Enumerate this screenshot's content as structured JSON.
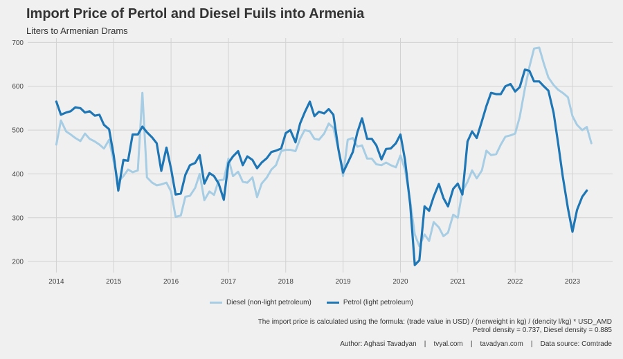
{
  "title": "Import Price of Pertol and Diesel Fuils into Armenia",
  "subtitle": "Liters to Armenian Drams",
  "caption_line1": "The import price is calculated using the formula: (trade value in USD) / (nerweight in kg) / (dencity l/kg) * USD_AMD",
  "caption_line2": "Petrol density = 0.737, Diesel density = 0.885",
  "credits": "Author: Aghasi Tavadyan    |    tvyal.com    |    tavadyan.com    |    Data source: Comtrade",
  "colors": {
    "diesel": "#a6cde3",
    "petrol": "#1f76b4",
    "grid": "#d2d2d2",
    "background": "#f0f0f0"
  },
  "chart_data": {
    "type": "line",
    "xlim": [
      2013.5,
      2023.7
    ],
    "ylim": [
      175,
      710
    ],
    "x_ticks": [
      2014,
      2015,
      2016,
      2017,
      2018,
      2019,
      2020,
      2021,
      2022,
      2023
    ],
    "y_ticks": [
      200,
      300,
      400,
      500,
      600,
      700
    ],
    "grid": true,
    "legend_position": "bottom",
    "series": [
      {
        "name": "Diesel (non-light petroleum)",
        "color": "#a6cde3",
        "points": [
          [
            2014.0,
            467
          ],
          [
            2014.08,
            522
          ],
          [
            2014.17,
            497
          ],
          [
            2014.25,
            490
          ],
          [
            2014.33,
            482
          ],
          [
            2014.42,
            475
          ],
          [
            2014.5,
            492
          ],
          [
            2014.58,
            480
          ],
          [
            2014.67,
            474
          ],
          [
            2014.75,
            467
          ],
          [
            2014.83,
            458
          ],
          [
            2014.92,
            478
          ],
          [
            2015.0,
            428
          ],
          [
            2015.08,
            382
          ],
          [
            2015.17,
            395
          ],
          [
            2015.25,
            410
          ],
          [
            2015.33,
            404
          ],
          [
            2015.42,
            408
          ],
          [
            2015.5,
            585
          ],
          [
            2015.58,
            392
          ],
          [
            2015.67,
            380
          ],
          [
            2015.75,
            374
          ],
          [
            2015.83,
            376
          ],
          [
            2015.92,
            380
          ],
          [
            2016.0,
            360
          ],
          [
            2016.08,
            302
          ],
          [
            2016.17,
            305
          ],
          [
            2016.25,
            348
          ],
          [
            2016.33,
            350
          ],
          [
            2016.42,
            368
          ],
          [
            2016.5,
            400
          ],
          [
            2016.58,
            340
          ],
          [
            2016.67,
            360
          ],
          [
            2016.75,
            352
          ],
          [
            2016.83,
            385
          ],
          [
            2016.92,
            387
          ],
          [
            2017.0,
            435
          ],
          [
            2017.08,
            395
          ],
          [
            2017.17,
            405
          ],
          [
            2017.25,
            382
          ],
          [
            2017.33,
            380
          ],
          [
            2017.42,
            392
          ],
          [
            2017.5,
            347
          ],
          [
            2017.58,
            378
          ],
          [
            2017.67,
            392
          ],
          [
            2017.75,
            410
          ],
          [
            2017.83,
            420
          ],
          [
            2017.92,
            452
          ],
          [
            2018.0,
            455
          ],
          [
            2018.08,
            455
          ],
          [
            2018.17,
            452
          ],
          [
            2018.25,
            480
          ],
          [
            2018.33,
            500
          ],
          [
            2018.42,
            497
          ],
          [
            2018.5,
            480
          ],
          [
            2018.58,
            478
          ],
          [
            2018.67,
            492
          ],
          [
            2018.75,
            515
          ],
          [
            2018.83,
            505
          ],
          [
            2018.92,
            455
          ],
          [
            2019.0,
            395
          ],
          [
            2019.08,
            478
          ],
          [
            2019.17,
            482
          ],
          [
            2019.25,
            462
          ],
          [
            2019.33,
            465
          ],
          [
            2019.42,
            435
          ],
          [
            2019.5,
            435
          ],
          [
            2019.58,
            422
          ],
          [
            2019.67,
            420
          ],
          [
            2019.75,
            426
          ],
          [
            2019.83,
            420
          ],
          [
            2019.92,
            415
          ],
          [
            2020.0,
            442
          ],
          [
            2020.08,
            410
          ],
          [
            2020.17,
            338
          ],
          [
            2020.25,
            262
          ],
          [
            2020.33,
            235
          ],
          [
            2020.42,
            262
          ],
          [
            2020.5,
            247
          ],
          [
            2020.58,
            290
          ],
          [
            2020.67,
            278
          ],
          [
            2020.75,
            258
          ],
          [
            2020.83,
            266
          ],
          [
            2020.92,
            307
          ],
          [
            2021.0,
            300
          ],
          [
            2021.08,
            360
          ],
          [
            2021.17,
            382
          ],
          [
            2021.25,
            408
          ],
          [
            2021.33,
            390
          ],
          [
            2021.42,
            408
          ],
          [
            2021.5,
            453
          ],
          [
            2021.58,
            443
          ],
          [
            2021.67,
            445
          ],
          [
            2021.75,
            467
          ],
          [
            2021.83,
            485
          ],
          [
            2021.92,
            488
          ],
          [
            2022.0,
            492
          ],
          [
            2022.08,
            530
          ],
          [
            2022.17,
            595
          ],
          [
            2022.25,
            645
          ],
          [
            2022.33,
            686
          ],
          [
            2022.42,
            688
          ],
          [
            2022.5,
            652
          ],
          [
            2022.58,
            620
          ],
          [
            2022.67,
            603
          ],
          [
            2022.75,
            592
          ],
          [
            2022.83,
            585
          ],
          [
            2022.92,
            575
          ],
          [
            2023.0,
            532
          ],
          [
            2023.08,
            512
          ],
          [
            2023.17,
            500
          ],
          [
            2023.25,
            507
          ],
          [
            2023.33,
            470
          ]
        ]
      },
      {
        "name": "Petrol (light petroleum)",
        "color": "#1f76b4",
        "points": [
          [
            2014.0,
            565
          ],
          [
            2014.08,
            535
          ],
          [
            2014.17,
            540
          ],
          [
            2014.25,
            543
          ],
          [
            2014.33,
            552
          ],
          [
            2014.42,
            550
          ],
          [
            2014.5,
            540
          ],
          [
            2014.58,
            543
          ],
          [
            2014.67,
            533
          ],
          [
            2014.75,
            535
          ],
          [
            2014.83,
            512
          ],
          [
            2014.92,
            502
          ],
          [
            2015.0,
            442
          ],
          [
            2015.08,
            362
          ],
          [
            2015.17,
            432
          ],
          [
            2015.25,
            430
          ],
          [
            2015.33,
            490
          ],
          [
            2015.42,
            490
          ],
          [
            2015.5,
            508
          ],
          [
            2015.58,
            495
          ],
          [
            2015.67,
            483
          ],
          [
            2015.75,
            470
          ],
          [
            2015.83,
            407
          ],
          [
            2015.92,
            460
          ],
          [
            2016.0,
            412
          ],
          [
            2016.08,
            353
          ],
          [
            2016.17,
            355
          ],
          [
            2016.25,
            398
          ],
          [
            2016.33,
            420
          ],
          [
            2016.42,
            425
          ],
          [
            2016.5,
            443
          ],
          [
            2016.58,
            378
          ],
          [
            2016.67,
            402
          ],
          [
            2016.75,
            395
          ],
          [
            2016.83,
            378
          ],
          [
            2016.92,
            341
          ],
          [
            2017.0,
            425
          ],
          [
            2017.08,
            440
          ],
          [
            2017.17,
            452
          ],
          [
            2017.25,
            420
          ],
          [
            2017.33,
            440
          ],
          [
            2017.42,
            432
          ],
          [
            2017.5,
            413
          ],
          [
            2017.58,
            426
          ],
          [
            2017.67,
            436
          ],
          [
            2017.75,
            450
          ],
          [
            2017.83,
            453
          ],
          [
            2017.92,
            458
          ],
          [
            2018.0,
            493
          ],
          [
            2018.08,
            500
          ],
          [
            2018.17,
            472
          ],
          [
            2018.25,
            515
          ],
          [
            2018.33,
            540
          ],
          [
            2018.42,
            565
          ],
          [
            2018.5,
            532
          ],
          [
            2018.58,
            542
          ],
          [
            2018.67,
            538
          ],
          [
            2018.75,
            548
          ],
          [
            2018.83,
            535
          ],
          [
            2018.92,
            455
          ],
          [
            2019.0,
            403
          ],
          [
            2019.08,
            425
          ],
          [
            2019.17,
            450
          ],
          [
            2019.25,
            495
          ],
          [
            2019.33,
            527
          ],
          [
            2019.42,
            480
          ],
          [
            2019.5,
            480
          ],
          [
            2019.58,
            465
          ],
          [
            2019.67,
            433
          ],
          [
            2019.75,
            457
          ],
          [
            2019.83,
            458
          ],
          [
            2019.92,
            470
          ],
          [
            2020.0,
            490
          ],
          [
            2020.08,
            432
          ],
          [
            2020.17,
            330
          ],
          [
            2020.25,
            192
          ],
          [
            2020.33,
            203
          ],
          [
            2020.42,
            326
          ],
          [
            2020.5,
            316
          ],
          [
            2020.58,
            348
          ],
          [
            2020.67,
            377
          ],
          [
            2020.75,
            345
          ],
          [
            2020.83,
            326
          ],
          [
            2020.92,
            366
          ],
          [
            2021.0,
            378
          ],
          [
            2021.08,
            353
          ],
          [
            2021.17,
            474
          ],
          [
            2021.25,
            497
          ],
          [
            2021.33,
            482
          ],
          [
            2021.42,
            520
          ],
          [
            2021.5,
            555
          ],
          [
            2021.58,
            585
          ],
          [
            2021.67,
            582
          ],
          [
            2021.75,
            582
          ],
          [
            2021.83,
            600
          ],
          [
            2021.92,
            605
          ],
          [
            2022.0,
            588
          ],
          [
            2022.08,
            598
          ],
          [
            2022.17,
            638
          ],
          [
            2022.25,
            635
          ],
          [
            2022.33,
            611
          ],
          [
            2022.42,
            611
          ],
          [
            2022.5,
            600
          ],
          [
            2022.58,
            590
          ],
          [
            2022.67,
            540
          ],
          [
            2022.75,
            470
          ],
          [
            2022.83,
            395
          ],
          [
            2022.92,
            322
          ],
          [
            2023.0,
            268
          ],
          [
            2023.08,
            318
          ],
          [
            2023.17,
            348
          ],
          [
            2023.25,
            362
          ]
        ]
      }
    ]
  }
}
